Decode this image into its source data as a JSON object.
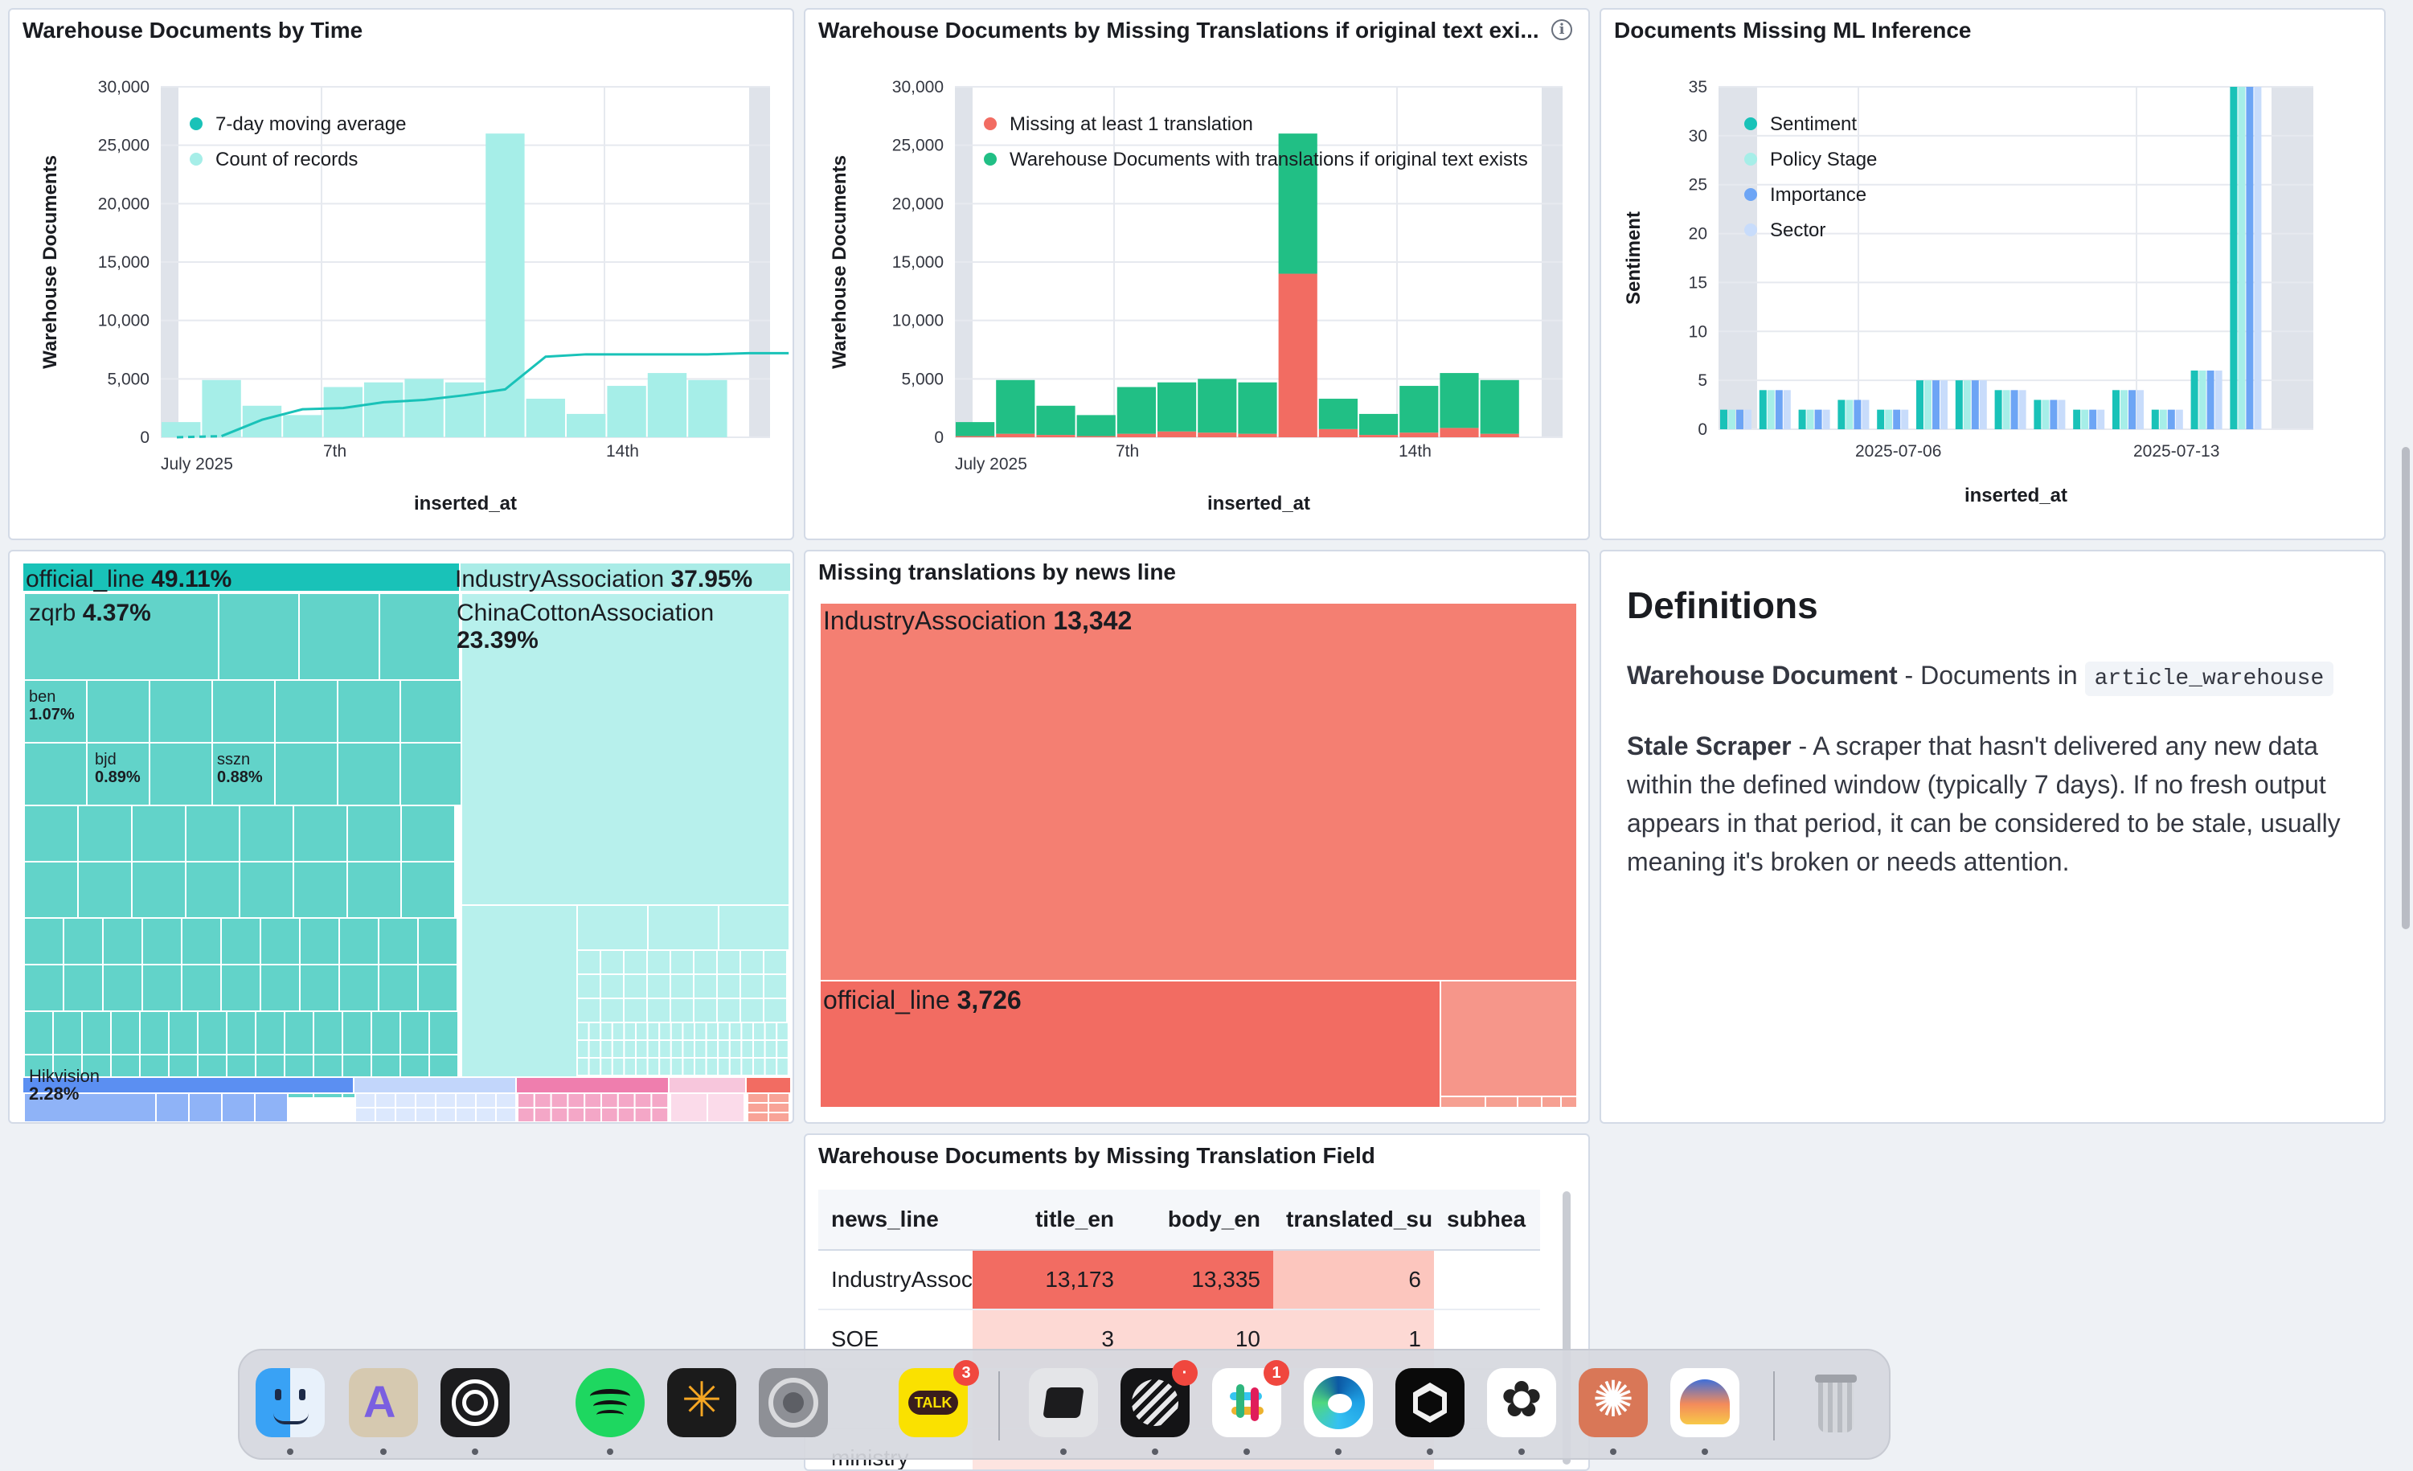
{
  "panels": {
    "time": {
      "title": "Warehouse Documents by Time",
      "legend": [
        "7-day moving average",
        "Count of records"
      ],
      "ylabel": "Warehouse Documents",
      "xlabel": "inserted_at",
      "xticks": [
        "July 2025",
        "7th",
        "14th"
      ]
    },
    "missing": {
      "title": "Warehouse Documents by Missing Translations if original text exi...",
      "legend": [
        "Missing at least 1 translation",
        "Warehouse Documents with translations if original text exists"
      ],
      "ylabel": "Warehouse Documents",
      "xlabel": "inserted_at",
      "xticks": [
        "July 2025",
        "7th",
        "14th"
      ]
    },
    "ml": {
      "title": "Documents Missing ML Inference",
      "legend": [
        "Sentiment",
        "Policy Stage",
        "Importance",
        "Sector"
      ],
      "ylabel": "Sentiment",
      "xlabel": "inserted_at",
      "xticks": [
        "2025-07-06",
        "2025-07-13"
      ]
    },
    "treemap": {
      "official_line": "official_line",
      "official_line_pct": "49.11%",
      "industry": "IndustryAssociation",
      "industry_pct": "37.95%",
      "zqrb": "zqrb",
      "zqrb_pct": "4.37%",
      "china_cotton": "ChinaCottonAssociation",
      "china_cotton_pct": "23.39%",
      "ben": "ben",
      "ben_pct": "1.07%",
      "bjd": "bjd",
      "bjd_pct": "0.89%",
      "sszn": "sszn",
      "sszn_pct": "0.88%",
      "hikvision": "Hikvision",
      "hikvision_pct": "2.28%"
    },
    "newsline": {
      "title": "Missing translations by news line",
      "industry": "IndustryAssociation",
      "industry_val": "13,342",
      "official": "official_line",
      "official_val": "3,726"
    },
    "definitions": {
      "heading": "Definitions",
      "term1": "Warehouse Document",
      "term1_text": " - Documents in ",
      "term1_code": "article_warehouse",
      "term2": "Stale Scraper",
      "term2_text": " - A scraper that hasn't delivered any new data within the defined window (typically 7 days). If no fresh output appears in that period, it can be considered to be stale, usually meaning it's broken or needs attention."
    },
    "table": {
      "title": "Warehouse Documents by Missing Translation Field",
      "columns": [
        "news_line",
        "title_en",
        "body_en",
        "translated_su",
        "subhea"
      ],
      "rows": [
        [
          "IndustryAssoc",
          "13,173",
          "13,335",
          "6",
          ""
        ],
        [
          "SOE",
          "3",
          "10",
          "1",
          ""
        ],
        [
          "",
          "",
          "",
          "",
          ""
        ],
        [
          "ministry",
          "",
          "",
          "",
          ""
        ]
      ]
    }
  },
  "chart_data": [
    {
      "type": "bar",
      "title": "Warehouse Documents by Time",
      "xlabel": "inserted_at",
      "ylabel": "Warehouse Documents",
      "ylim": [
        0,
        30000
      ],
      "yticks": [
        "0",
        "5,000",
        "10,000",
        "15,000",
        "20,000",
        "25,000",
        "30,000"
      ],
      "x": [
        "2025-06-30",
        "2025-07-01",
        "2025-07-02",
        "2025-07-03",
        "2025-07-04",
        "2025-07-05",
        "2025-07-06",
        "2025-07-07",
        "2025-07-08",
        "2025-07-09",
        "2025-07-10",
        "2025-07-11",
        "2025-07-12",
        "2025-07-13",
        "2025-07-14",
        "2025-07-15"
      ],
      "series": [
        {
          "name": "Count of records",
          "type": "bar",
          "values": [
            1300,
            4900,
            2700,
            1900,
            4300,
            4700,
            5000,
            4700,
            26000,
            3300,
            2000,
            4400,
            5500,
            4900,
            null,
            null
          ]
        },
        {
          "name": "7-day moving average",
          "type": "line",
          "values": [
            null,
            100,
            1500,
            2400,
            2500,
            3000,
            3200,
            3600,
            4100,
            6900,
            7100,
            7100,
            7100,
            7100,
            7200,
            7200
          ]
        }
      ],
      "legend": "top-left"
    },
    {
      "type": "bar",
      "stacked": true,
      "title": "Warehouse Documents by Missing Translations if original text exi...",
      "xlabel": "inserted_at",
      "ylabel": "Warehouse Documents",
      "ylim": [
        0,
        30000
      ],
      "yticks": [
        "0",
        "5,000",
        "10,000",
        "15,000",
        "20,000",
        "25,000",
        "30,000"
      ],
      "x": [
        "2025-06-30",
        "2025-07-01",
        "2025-07-02",
        "2025-07-03",
        "2025-07-04",
        "2025-07-05",
        "2025-07-06",
        "2025-07-07",
        "2025-07-08",
        "2025-07-09",
        "2025-07-10",
        "2025-07-11",
        "2025-07-12",
        "2025-07-13"
      ],
      "series": [
        {
          "name": "Missing at least 1 translation",
          "values": [
            100,
            300,
            200,
            100,
            300,
            500,
            400,
            300,
            14000,
            700,
            200,
            400,
            800,
            300
          ]
        },
        {
          "name": "Warehouse Documents with translations if original text exists",
          "values": [
            1200,
            4600,
            2500,
            1800,
            4000,
            4200,
            4600,
            4400,
            12000,
            2600,
            1800,
            4000,
            4700,
            4600
          ]
        }
      ],
      "legend": "top-left"
    },
    {
      "type": "bar",
      "title": "Documents Missing ML Inference",
      "xlabel": "inserted_at",
      "ylabel": "Sentiment",
      "ylim": [
        0,
        35
      ],
      "yticks": [
        "0",
        "5",
        "10",
        "15",
        "20",
        "25",
        "30",
        "35"
      ],
      "x": [
        "2025-07-01",
        "2025-07-02",
        "2025-07-03",
        "2025-07-04",
        "2025-07-05",
        "2025-07-06",
        "2025-07-07",
        "2025-07-08",
        "2025-07-09",
        "2025-07-10",
        "2025-07-11",
        "2025-07-12",
        "2025-07-13",
        "2025-07-14",
        "2025-07-15"
      ],
      "series": [
        {
          "name": "Sentiment",
          "values": [
            2,
            4,
            2,
            3,
            2,
            5,
            5,
            4,
            3,
            2,
            4,
            2,
            6,
            35,
            0
          ]
        },
        {
          "name": "Policy Stage",
          "values": [
            2,
            4,
            2,
            3,
            2,
            5,
            5,
            4,
            3,
            2,
            4,
            2,
            6,
            35,
            0
          ]
        },
        {
          "name": "Importance",
          "values": [
            2,
            4,
            2,
            3,
            2,
            5,
            5,
            4,
            3,
            2,
            4,
            2,
            6,
            35,
            0
          ]
        },
        {
          "name": "Sector",
          "values": [
            2,
            4,
            2,
            3,
            2,
            5,
            5,
            4,
            3,
            2,
            4,
            2,
            6,
            35,
            0
          ]
        }
      ],
      "legend": "top-left"
    },
    {
      "type": "treemap",
      "title": "",
      "groups": [
        {
          "name": "official_line",
          "value": 49.11
        },
        {
          "name": "IndustryAssociation",
          "value": 37.95
        },
        {
          "name": "zqrb",
          "value": 4.37
        },
        {
          "name": "ChinaCottonAssociation",
          "value": 23.39
        },
        {
          "name": "Hikvision",
          "value": 2.28
        },
        {
          "name": "ben",
          "value": 1.07
        },
        {
          "name": "bjd",
          "value": 0.89
        },
        {
          "name": "sszn",
          "value": 0.88
        }
      ]
    },
    {
      "type": "treemap",
      "title": "Missing translations by news line",
      "groups": [
        {
          "name": "IndustryAssociation",
          "value": 13342
        },
        {
          "name": "official_line",
          "value": 3726
        }
      ]
    }
  ],
  "colors": {
    "teal": "#19c2b8",
    "light_teal": "#a6eee8",
    "red": "#f26c62",
    "green": "#21bf85",
    "blue": "#6da5f5",
    "light_blue": "#c8dcfb",
    "pale_teal": "#b7f0ec"
  },
  "dock": {
    "apps": [
      "finder-icon",
      "artstudio-icon",
      "camera-icon",
      "spotify-icon",
      "perplexity-icon",
      "system-settings-icon",
      "kakaotalk-icon",
      "screen-app-icon",
      "linear-icon",
      "slack-icon",
      "edge-icon",
      "cube-app-icon",
      "chatgpt-icon",
      "claude-icon",
      "arc-icon",
      "trash-icon"
    ],
    "kakaotalk_label": "TALK",
    "badges": {
      "kakaotalk": "3",
      "linear": "·",
      "slack": "1"
    }
  }
}
